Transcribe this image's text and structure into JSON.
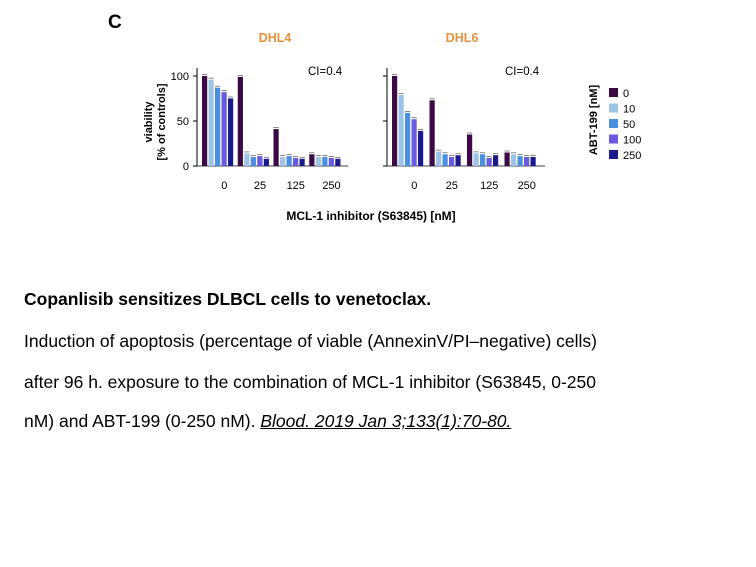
{
  "panel_letter": "C",
  "chart_data": [
    {
      "type": "bar",
      "title": "DHL4",
      "annotation": "CI=0.4",
      "categories": [
        "0",
        "25",
        "125",
        "250"
      ],
      "series": [
        {
          "name": "0",
          "values": [
            100,
            99,
            41,
            13
          ]
        },
        {
          "name": "10",
          "values": [
            96,
            14,
            10,
            10
          ]
        },
        {
          "name": "50",
          "values": [
            87,
            10,
            11,
            10
          ]
        },
        {
          "name": "100",
          "values": [
            82,
            11,
            9,
            9
          ]
        },
        {
          "name": "250",
          "values": [
            75,
            8,
            8,
            8
          ]
        }
      ],
      "ylim": [
        0,
        100
      ],
      "yticks": [
        0,
        50,
        100
      ],
      "ylabel": "viability [% of controls]",
      "xlabel": "MCL-1 inhibitor (S63845) [nM]",
      "title_color": "#E8923A"
    },
    {
      "type": "bar",
      "title": "DHL6",
      "annotation": "CI=0.4",
      "categories": [
        "0",
        "25",
        "125",
        "250"
      ],
      "series": [
        {
          "name": "0",
          "values": [
            100,
            73,
            35,
            15
          ]
        },
        {
          "name": "10",
          "values": [
            79,
            16,
            14,
            13
          ]
        },
        {
          "name": "50",
          "values": [
            59,
            13,
            13,
            11
          ]
        },
        {
          "name": "100",
          "values": [
            52,
            10,
            9,
            10
          ]
        },
        {
          "name": "250",
          "values": [
            39,
            12,
            12,
            10
          ]
        }
      ],
      "ylim": [
        0,
        100
      ],
      "yticks": [
        0,
        50,
        100
      ],
      "xlabel": "MCL-1 inhibitor (S63845) [nM]",
      "title_color": "#E8923A"
    }
  ],
  "legend": {
    "title": "ABT-199 [nM]",
    "placement": "right",
    "items": [
      {
        "label": "0",
        "color": "#3B0A45"
      },
      {
        "label": "10",
        "color": "#9DC3E6"
      },
      {
        "label": "50",
        "color": "#4A8FE0"
      },
      {
        "label": "100",
        "color": "#6A5AE0"
      },
      {
        "label": "250",
        "color": "#1A1A8C"
      }
    ]
  },
  "caption": {
    "title": "Copanlisib sensitizes DLBCL cells to venetoclax.",
    "line1": "Induction of apoptosis (percentage of viable (AnnexinV/PI–negative) cells)",
    "line2": "after 96 h. exposure to the combination of MCL-1 inhibitor (S63845, 0-250",
    "line3_text": "nM) and ABT-199 (0-250 nM). ",
    "citation": "Blood. 2019 Jan 3;133(1):70-80. "
  }
}
